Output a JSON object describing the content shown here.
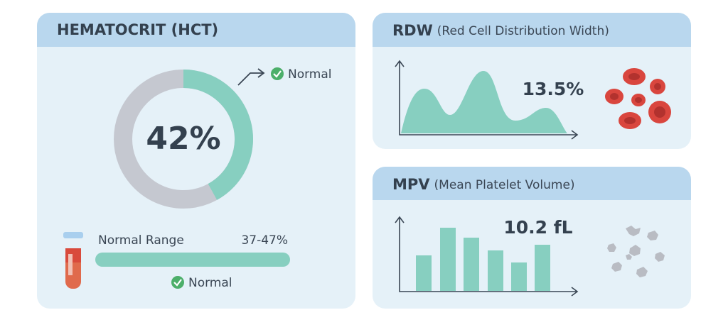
{
  "hct": {
    "title": "HEMATOCRIT (HCT)",
    "value": 42,
    "value_label": "42%",
    "status": "Normal",
    "range_label": "Normal Range",
    "range": "37-47%",
    "range_status": "Normal"
  },
  "rdw": {
    "title": "RDW",
    "subtitle": "(Red Cell Distribution Width)",
    "value": "13.5%"
  },
  "mpv": {
    "title": "MPV",
    "subtitle": "(Mean Platelet Volume)",
    "value": "10.2 fL"
  }
}
